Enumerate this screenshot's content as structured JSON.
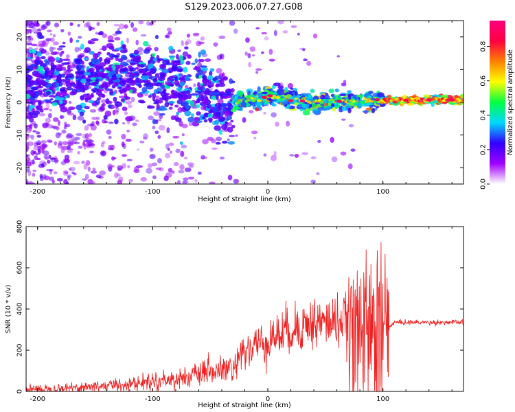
{
  "figure": {
    "title": "S129.2023.006.07.27.G08"
  },
  "chart_data": [
    {
      "type": "heatmap",
      "xlabel": "Height of straight line (km)",
      "ylabel": "Frequency (Hz)",
      "xlim": [
        -210,
        170
      ],
      "ylim": [
        -25,
        25
      ],
      "x_ticks": [
        -200,
        -100,
        0,
        100
      ],
      "y_ticks": [
        -20,
        -10,
        0,
        10,
        20
      ],
      "colorbar": {
        "label": "Normalized spectral amplitude",
        "range": [
          0,
          0.95
        ],
        "ticks": [
          0.0,
          0.2,
          0.4,
          0.6,
          0.8
        ],
        "tick_labels": [
          "0.0",
          "0.2",
          "0.4",
          "0.6",
          "0.8"
        ],
        "colormap": [
          "#ffffff",
          "#a000ff",
          "#3000ff",
          "#00d8ff",
          "#00ff40",
          "#ffff00",
          "#ff8000",
          "#ff0040",
          "#ff0080"
        ]
      },
      "ridge": [
        {
          "x": -200,
          "f": 6
        },
        {
          "x": -170,
          "f": 7
        },
        {
          "x": -140,
          "f": 8
        },
        {
          "x": -120,
          "f": 9
        },
        {
          "x": -100,
          "f": 8
        },
        {
          "x": -80,
          "f": 5
        },
        {
          "x": -60,
          "f": 3
        },
        {
          "x": -45,
          "f": 0
        },
        {
          "x": -35,
          "f": -2
        },
        {
          "x": -25,
          "f": 0.5
        },
        {
          "x": -5,
          "f": 1
        },
        {
          "x": 0,
          "f": 2
        },
        {
          "x": 20,
          "f": 0.5
        },
        {
          "x": 60,
          "f": 0.3
        },
        {
          "x": 80,
          "f": 0.3
        },
        {
          "x": 95,
          "f": 0.5
        },
        {
          "x": 170,
          "f": 0.8
        }
      ]
    },
    {
      "type": "line",
      "xlabel": "Height of straight line (km)",
      "ylabel": "SNR (10 * v/v)",
      "xlim": [
        -210,
        170
      ],
      "ylim": [
        0,
        800
      ],
      "x_ticks": [
        -200,
        -100,
        0,
        100
      ],
      "y_ticks": [
        0,
        200,
        400,
        600,
        800
      ],
      "color": "#ee2222",
      "envelope": [
        {
          "x": -210,
          "y": 10
        },
        {
          "x": -180,
          "y": 15
        },
        {
          "x": -150,
          "y": 25
        },
        {
          "x": -120,
          "y": 35
        },
        {
          "x": -100,
          "y": 50
        },
        {
          "x": -80,
          "y": 60
        },
        {
          "x": -60,
          "y": 80
        },
        {
          "x": -40,
          "y": 100
        },
        {
          "x": -30,
          "y": 110
        },
        {
          "x": -20,
          "y": 190
        },
        {
          "x": -10,
          "y": 220
        },
        {
          "x": 0,
          "y": 250
        },
        {
          "x": 10,
          "y": 275
        },
        {
          "x": 20,
          "y": 300
        },
        {
          "x": 30,
          "y": 320
        },
        {
          "x": 40,
          "y": 330
        },
        {
          "x": 50,
          "y": 335
        },
        {
          "x": 60,
          "y": 340
        },
        {
          "x": 70,
          "y": 345
        },
        {
          "x": 75,
          "y": 300
        },
        {
          "x": 85,
          "y": 300
        },
        {
          "x": 95,
          "y": 290
        },
        {
          "x": 103,
          "y": 300
        },
        {
          "x": 110,
          "y": 335
        },
        {
          "x": 140,
          "y": 335
        },
        {
          "x": 170,
          "y": 335
        }
      ]
    }
  ]
}
